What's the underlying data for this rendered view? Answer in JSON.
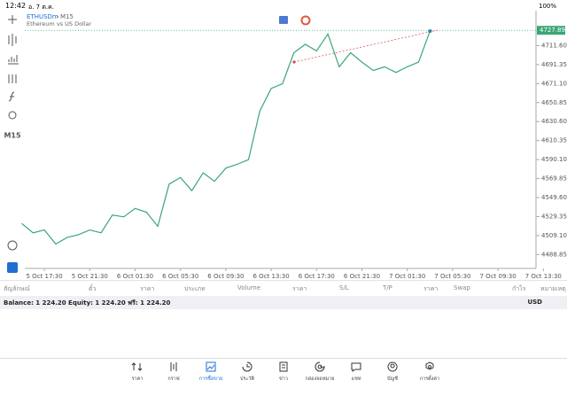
{
  "status_bar": {
    "time": "12:42",
    "date": "อ. 7 ต.ค.",
    "battery": "100%"
  },
  "side_toolbar": {
    "timeframe": "M15"
  },
  "chart_header": {
    "symbol": "ETHUSDm",
    "timeframe": "M15",
    "description": "Ethereum vs US Dollar"
  },
  "chart_data": {
    "type": "line",
    "categories": [
      null,
      null,
      "5 Oct 17:30",
      null,
      null,
      null,
      "5 Oct 21:30",
      null,
      null,
      null,
      "6 Oct 01:30",
      null,
      null,
      null,
      "6 Oct 05:30",
      null,
      null,
      null,
      "6 Oct 09:30",
      null,
      null,
      null,
      "6 Oct 13:30",
      null,
      null,
      null,
      "6 Oct 17:30",
      null,
      null,
      null,
      "6 Oct 21:30",
      null,
      null,
      null,
      "7 Oct 01:30",
      null,
      null,
      null,
      "7 Oct 05:30",
      null,
      null,
      null,
      "7 Oct 09:30",
      null,
      null,
      null,
      "7 Oct 13:30"
    ],
    "series": [
      {
        "name": "ETHUSDm",
        "color": "#3aa676",
        "values": [
          4522,
          4512,
          4515,
          4500,
          4507,
          4510,
          4515,
          4512,
          4531,
          4529,
          4538,
          4534,
          4519,
          4564,
          4571,
          4557,
          4576,
          4567,
          4581,
          4585,
          4590,
          4642,
          4666,
          4671,
          4704,
          4713,
          4706,
          4724,
          4689,
          4704,
          4694,
          4685,
          4689,
          4683,
          4689,
          4694,
          4727,
          null,
          null,
          null,
          null,
          null,
          null,
          null,
          null,
          null,
          null
        ]
      }
    ],
    "ylim": [
      4475,
      4747
    ],
    "yticks": [
      {
        "value": 4711.6,
        "label": "4711.60"
      },
      4691.35,
      {
        "value": 4671.1,
        "label": "4671.10"
      },
      4650.85,
      {
        "value": 4630.6,
        "label": "4630.60"
      },
      4610.35,
      {
        "value": 4590.1,
        "label": "4590.10"
      },
      4569.85,
      {
        "value": 4549.6,
        "label": "4549.60"
      },
      4529.35,
      {
        "value": 4509.1,
        "label": "4509.10"
      },
      4488.85
    ],
    "last_price": 4727.89,
    "grid": false
  },
  "positions_table": {
    "headers": [
      "สัญลักษณ์",
      "ตั๋ว",
      "ราคา",
      "ประเภท",
      "Volume",
      "ราคา",
      "S/L",
      "T/P",
      "ราคา",
      "Swap",
      "กำไร",
      "หมายเหตุ"
    ]
  },
  "balance_bar": {
    "summary": "Balance: 1 224.20 Equity: 1 224.20 ฟรี: 1 224.20",
    "currency": "USD"
  },
  "bottom_nav": {
    "items": [
      "ราคา",
      "กราฟ",
      "การซื้อขาย",
      "ประวัติ",
      "ข่าว",
      "กล่องจดหมาย",
      "แชท",
      "บัญชี",
      "การตั้งค่า"
    ],
    "active": "การซื้อขาย"
  }
}
